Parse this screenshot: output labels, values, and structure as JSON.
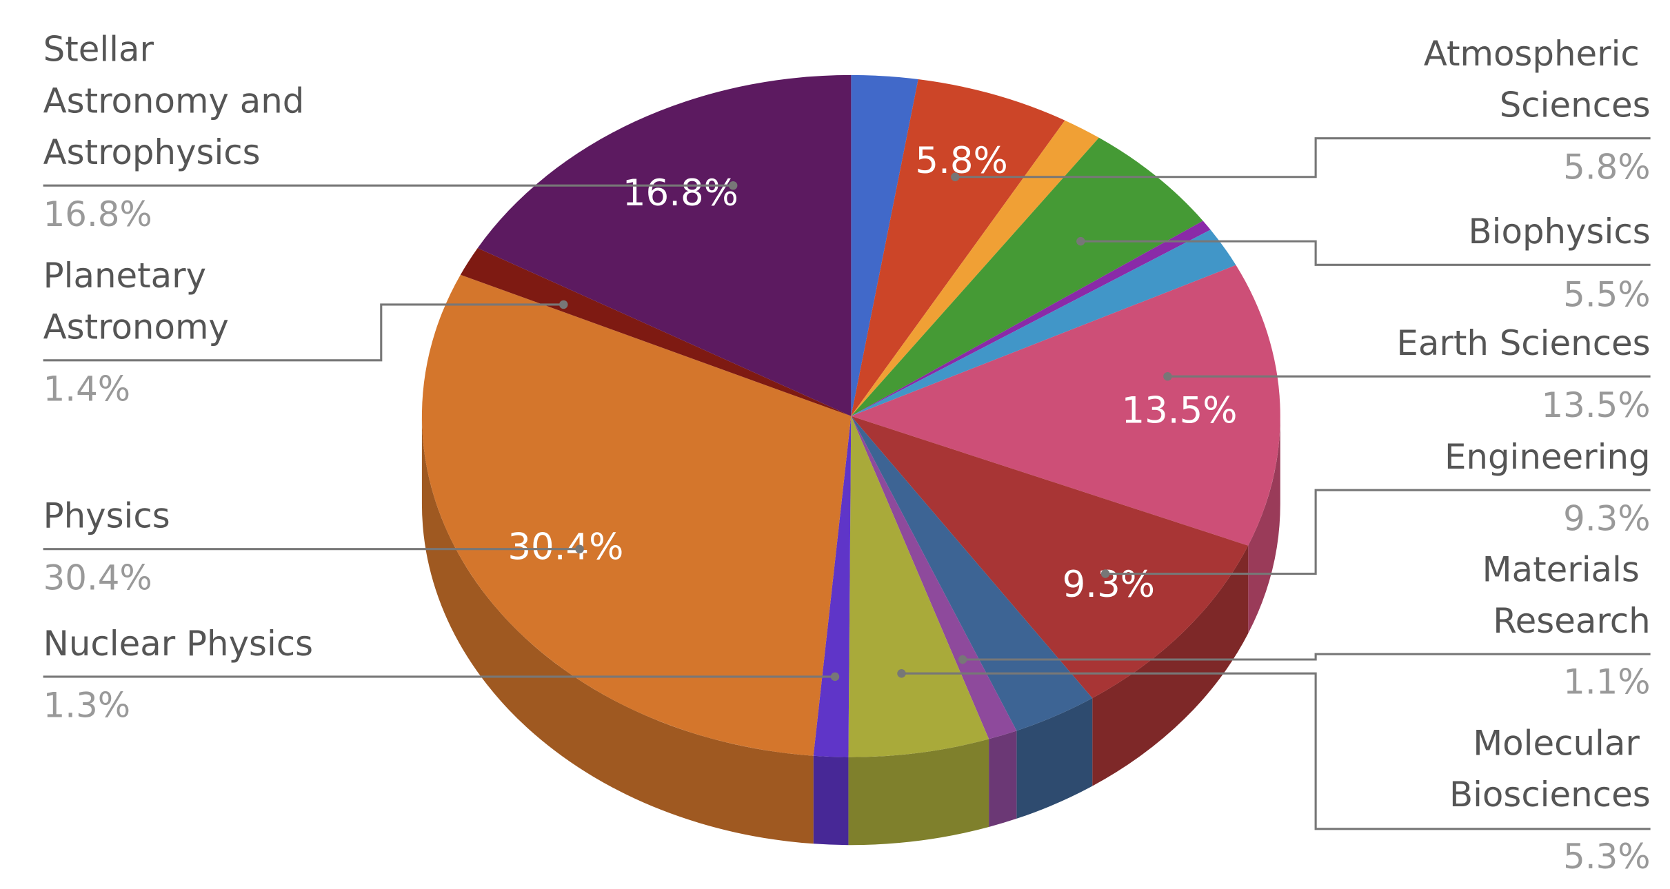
{
  "chart_data": {
    "type": "pie3d",
    "categories": [
      null,
      "Atmospheric Sciences",
      null,
      "Biophysics",
      null,
      null,
      "Earth Sciences",
      "Engineering",
      null,
      "Materials Research",
      "Molecular Biosciences",
      "Nuclear Physics",
      "Physics",
      "Planetary Astronomy",
      "Stellar Astronomy and Astrophysics"
    ],
    "values": [
      2.5,
      5.8,
      1.5,
      5.5,
      0.5,
      1.9,
      13.5,
      9.3,
      3.2,
      1.1,
      5.3,
      1.3,
      30.4,
      1.4,
      16.8
    ],
    "value_labels": [
      null,
      "5.8%",
      null,
      "5.5%",
      null,
      null,
      "13.5%",
      "9.3%",
      null,
      "1.1%",
      "5.3%",
      "1.3%",
      "30.4%",
      "1.4%",
      "16.8%"
    ],
    "colors": [
      "#4169c9",
      "#cc4528",
      "#f0a035",
      "#459a35",
      "#8a2aa8",
      "#4196c8",
      "#cd4f77",
      "#a83535",
      "#3d6494",
      "#8e4a9c",
      "#a9aa3a",
      "#5f35c8",
      "#d4762c",
      "#7e1a12",
      "#5c1a60"
    ]
  }
}
